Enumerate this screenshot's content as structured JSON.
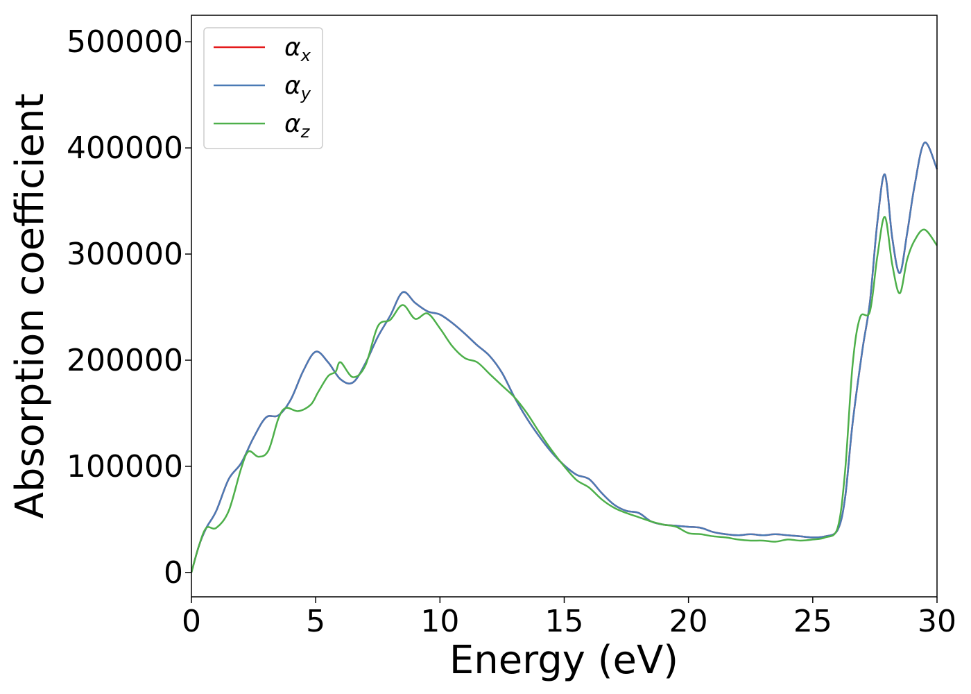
{
  "chart_data": {
    "type": "line",
    "xlabel": "Energy (eV)",
    "ylabel": "Absorption coefficient",
    "xlim": [
      0,
      30
    ],
    "ylim": [
      -23000,
      525000
    ],
    "xticks": [
      "0",
      "5",
      "10",
      "15",
      "20",
      "25",
      "30"
    ],
    "yticks": [
      "0",
      "100000",
      "200000",
      "300000",
      "400000",
      "500000"
    ],
    "grid": false,
    "legend_position": "top-left",
    "series": [
      {
        "name": "α_x",
        "legend_symbol": "α",
        "legend_sub": "x",
        "color": "#e41a1c",
        "x": [
          0,
          0.3,
          0.6,
          1.0,
          1.5,
          2.0,
          2.5,
          3.0,
          3.5,
          4.0,
          4.5,
          5.0,
          5.5,
          6.0,
          6.5,
          7.0,
          7.5,
          8.0,
          8.5,
          9.0,
          9.5,
          10.0,
          10.5,
          11.0,
          11.5,
          12.0,
          12.5,
          13.0,
          13.5,
          14.0,
          14.5,
          15.0,
          15.5,
          16.0,
          16.5,
          17.0,
          17.5,
          18.0,
          18.5,
          19.0,
          19.5,
          20.0,
          20.5,
          21.0,
          21.5,
          22.0,
          22.5,
          23.0,
          23.5,
          24.0,
          24.5,
          25.0,
          25.5,
          26.0,
          26.3,
          26.6,
          27.0,
          27.3,
          27.6,
          27.9,
          28.2,
          28.5,
          28.8,
          29.1,
          29.5,
          30.0
        ],
        "values": [
          0,
          25000,
          42000,
          58000,
          88000,
          103000,
          127000,
          146000,
          148000,
          163000,
          190000,
          208000,
          198000,
          182000,
          179000,
          197000,
          222000,
          242000,
          264000,
          254000,
          246000,
          243000,
          235000,
          225000,
          214000,
          204000,
          188000,
          165000,
          145000,
          128000,
          113000,
          101000,
          92000,
          88000,
          75000,
          64000,
          58000,
          56000,
          48000,
          45000,
          44000,
          43000,
          42000,
          38000,
          36000,
          35000,
          36000,
          35000,
          36000,
          35000,
          34000,
          33000,
          34000,
          40000,
          70000,
          140000,
          210000,
          255000,
          330000,
          375000,
          315000,
          282000,
          320000,
          365000,
          405000,
          380000
        ]
      },
      {
        "name": "α_y",
        "legend_symbol": "α",
        "legend_sub": "y",
        "color": "#4a7ab5",
        "x": [
          0,
          0.3,
          0.6,
          1.0,
          1.5,
          2.0,
          2.5,
          3.0,
          3.5,
          4.0,
          4.5,
          5.0,
          5.5,
          6.0,
          6.5,
          7.0,
          7.5,
          8.0,
          8.5,
          9.0,
          9.5,
          10.0,
          10.5,
          11.0,
          11.5,
          12.0,
          12.5,
          13.0,
          13.5,
          14.0,
          14.5,
          15.0,
          15.5,
          16.0,
          16.5,
          17.0,
          17.5,
          18.0,
          18.5,
          19.0,
          19.5,
          20.0,
          20.5,
          21.0,
          21.5,
          22.0,
          22.5,
          23.0,
          23.5,
          24.0,
          24.5,
          25.0,
          25.5,
          26.0,
          26.3,
          26.6,
          27.0,
          27.3,
          27.6,
          27.9,
          28.2,
          28.5,
          28.8,
          29.1,
          29.5,
          30.0
        ],
        "values": [
          0,
          25000,
          42000,
          58000,
          88000,
          103000,
          127000,
          146000,
          148000,
          163000,
          190000,
          208000,
          198000,
          182000,
          179000,
          197000,
          222000,
          242000,
          264000,
          254000,
          246000,
          243000,
          235000,
          225000,
          214000,
          204000,
          188000,
          165000,
          145000,
          128000,
          113000,
          101000,
          92000,
          88000,
          75000,
          64000,
          58000,
          56000,
          48000,
          45000,
          44000,
          43000,
          42000,
          38000,
          36000,
          35000,
          36000,
          35000,
          36000,
          35000,
          34000,
          33000,
          34000,
          40000,
          70000,
          140000,
          210000,
          255000,
          330000,
          375000,
          315000,
          282000,
          320000,
          365000,
          405000,
          380000
        ]
      },
      {
        "name": "α_z",
        "legend_symbol": "α",
        "legend_sub": "z",
        "color": "#4daf4a",
        "x": [
          0,
          0.3,
          0.6,
          1.0,
          1.5,
          2.0,
          2.3,
          2.7,
          3.1,
          3.5,
          3.8,
          4.3,
          4.8,
          5.1,
          5.5,
          5.8,
          6.0,
          6.5,
          7.0,
          7.5,
          8.0,
          8.5,
          9.0,
          9.5,
          10.0,
          10.5,
          11.0,
          11.5,
          12.0,
          12.5,
          13.0,
          13.5,
          14.0,
          14.5,
          15.0,
          15.5,
          16.0,
          16.5,
          17.0,
          17.5,
          18.0,
          18.5,
          19.0,
          19.5,
          20.0,
          20.5,
          21.0,
          21.5,
          22.0,
          22.5,
          23.0,
          23.5,
          24.0,
          24.5,
          25.0,
          25.5,
          26.0,
          26.3,
          26.6,
          26.9,
          27.3,
          27.6,
          27.9,
          28.2,
          28.5,
          28.8,
          29.1,
          29.5,
          30.0
        ],
        "values": [
          0,
          25000,
          42000,
          42000,
          58000,
          98000,
          114000,
          109000,
          115000,
          145000,
          155000,
          152000,
          158000,
          170000,
          185000,
          189000,
          198000,
          184000,
          195000,
          232000,
          238000,
          252000,
          239000,
          244000,
          230000,
          213000,
          202000,
          198000,
          187000,
          176000,
          165000,
          150000,
          132000,
          115000,
          100000,
          87000,
          80000,
          69000,
          61000,
          56000,
          52000,
          48000,
          45000,
          43000,
          37000,
          36000,
          34000,
          33000,
          31000,
          30000,
          30000,
          29000,
          31000,
          30000,
          31000,
          33000,
          42000,
          95000,
          195000,
          240000,
          246000,
          298000,
          335000,
          290000,
          263000,
          295000,
          313000,
          323000,
          308000
        ]
      }
    ]
  }
}
